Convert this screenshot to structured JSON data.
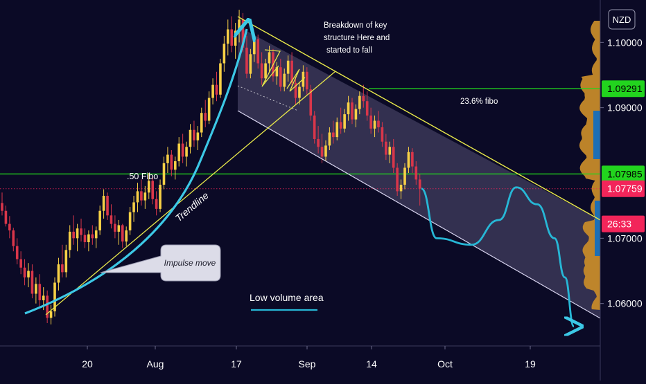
{
  "chart_data": {
    "type": "candlestick",
    "symbol_badge": "NZD",
    "x_ticks": [
      "20",
      "Aug",
      "17",
      "Sep",
      "14",
      "Oct",
      "19"
    ],
    "y_ticks": [
      "1.10000",
      "1.09000",
      "1.07000",
      "1.06000"
    ],
    "y_range": [
      1.0535,
      1.1065
    ],
    "price_tags": [
      {
        "label": "1.09291",
        "value": 1.09291,
        "color": "#22d41e",
        "text_color": "#000000"
      },
      {
        "label": "1.07985",
        "value": 1.07985,
        "color": "#22d41e",
        "text_color": "#000000"
      },
      {
        "label": "1.07759",
        "value": 1.07759,
        "color": "#f2255a",
        "text_color": "#ffffff"
      },
      {
        "label": "26:33",
        "value": 1.0722,
        "color": "#f2255a",
        "text_color": "#ffffff"
      }
    ],
    "annotations": {
      "breakdown": [
        "Breakdown of key",
        "structure Here and",
        "started to fall"
      ],
      "fibo_236": "23.6% fibo",
      "fibo_50": ".50 Fibo",
      "trendline": "Trendline",
      "impulse": "Impulse move",
      "low_volume": "Low volume area"
    },
    "horizontal_levels": [
      1.09291,
      1.07985
    ],
    "last_price": 1.07759,
    "candles": [
      [
        1.0754,
        1.077,
        1.0735,
        1.0742
      ],
      [
        1.0742,
        1.075,
        1.0718,
        1.0722
      ],
      [
        1.0722,
        1.0734,
        1.07,
        1.0712
      ],
      [
        1.0712,
        1.0716,
        1.068,
        1.0688
      ],
      [
        1.0688,
        1.07,
        1.066,
        1.0668
      ],
      [
        1.0668,
        1.068,
        1.0645,
        1.0655
      ],
      [
        1.0655,
        1.0668,
        1.0628,
        1.064
      ],
      [
        1.064,
        1.0662,
        1.0625,
        1.065
      ],
      [
        1.065,
        1.066,
        1.0608,
        1.0615
      ],
      [
        1.0615,
        1.064,
        1.06,
        1.063
      ],
      [
        1.063,
        1.0645,
        1.0595,
        1.0605
      ],
      [
        1.0605,
        1.0625,
        1.059,
        1.0612
      ],
      [
        1.0612,
        1.062,
        1.057,
        1.0578
      ],
      [
        1.0578,
        1.0598,
        1.0568,
        1.0588
      ],
      [
        1.0588,
        1.064,
        1.058,
        1.0632
      ],
      [
        1.0632,
        1.067,
        1.062,
        1.066
      ],
      [
        1.066,
        1.069,
        1.064,
        1.0648
      ],
      [
        1.0648,
        1.069,
        1.064,
        1.0682
      ],
      [
        1.0682,
        1.072,
        1.067,
        1.071
      ],
      [
        1.071,
        1.0735,
        1.069,
        1.07
      ],
      [
        1.07,
        1.0722,
        1.068,
        1.0715
      ],
      [
        1.0715,
        1.073,
        1.0695,
        1.0705
      ],
      [
        1.0705,
        1.0715,
        1.0685,
        1.0694
      ],
      [
        1.0694,
        1.0712,
        1.068,
        1.0706
      ],
      [
        1.0706,
        1.072,
        1.069,
        1.07
      ],
      [
        1.07,
        1.0718,
        1.0685,
        1.0712
      ],
      [
        1.0712,
        1.075,
        1.0705,
        1.0742
      ],
      [
        1.0742,
        1.0775,
        1.073,
        1.0765
      ],
      [
        1.0765,
        1.077,
        1.0728,
        1.0735
      ],
      [
        1.0735,
        1.0752,
        1.0715,
        1.0722
      ],
      [
        1.0722,
        1.0735,
        1.07,
        1.071
      ],
      [
        1.071,
        1.0728,
        1.069,
        1.072
      ],
      [
        1.072,
        1.0722,
        1.0685,
        1.0695
      ],
      [
        1.0695,
        1.0718,
        1.0688,
        1.0712
      ],
      [
        1.0712,
        1.0748,
        1.0705,
        1.074
      ],
      [
        1.074,
        1.0765,
        1.0725,
        1.0755
      ],
      [
        1.0755,
        1.0785,
        1.074,
        1.0772
      ],
      [
        1.0772,
        1.079,
        1.075,
        1.0758
      ],
      [
        1.0758,
        1.078,
        1.0745,
        1.077
      ],
      [
        1.077,
        1.08,
        1.076,
        1.0788
      ],
      [
        1.0788,
        1.0795,
        1.0752,
        1.076
      ],
      [
        1.076,
        1.0772,
        1.0735,
        1.0745
      ],
      [
        1.0745,
        1.079,
        1.074,
        1.0782
      ],
      [
        1.0782,
        1.0825,
        1.0775,
        1.0815
      ],
      [
        1.0815,
        1.084,
        1.08,
        1.0828
      ],
      [
        1.0828,
        1.0835,
        1.0795,
        1.0805
      ],
      [
        1.0805,
        1.0825,
        1.079,
        1.0818
      ],
      [
        1.0818,
        1.0855,
        1.081,
        1.0845
      ],
      [
        1.0845,
        1.086,
        1.0815,
        1.0825
      ],
      [
        1.0825,
        1.0848,
        1.081,
        1.084
      ],
      [
        1.084,
        1.0875,
        1.083,
        1.0866
      ],
      [
        1.0866,
        1.088,
        1.084,
        1.085
      ],
      [
        1.085,
        1.0872,
        1.0835,
        1.0862
      ],
      [
        1.0862,
        1.09,
        1.0855,
        1.0892
      ],
      [
        1.0892,
        1.0912,
        1.087,
        1.088
      ],
      [
        1.088,
        1.0925,
        1.0875,
        1.0915
      ],
      [
        1.0915,
        1.0945,
        1.0905,
        1.0935
      ],
      [
        1.0935,
        1.0955,
        1.091,
        1.092
      ],
      [
        1.092,
        1.0975,
        1.0915,
        1.0968
      ],
      [
        1.0968,
        1.101,
        1.0955,
        1.0998
      ],
      [
        1.0998,
        1.1035,
        1.098,
        1.102
      ],
      [
        1.102,
        1.104,
        1.0985,
        1.0995
      ],
      [
        1.0995,
        1.103,
        1.0975,
        1.1018
      ],
      [
        1.1018,
        1.105,
        1.1,
        1.1035
      ],
      [
        1.1035,
        1.1045,
        1.0985,
        1.0992
      ],
      [
        1.0992,
        1.101,
        1.0945,
        1.0952
      ],
      [
        1.0952,
        1.099,
        1.0945,
        1.0982
      ],
      [
        1.0982,
        1.1015,
        1.097,
        1.1005
      ],
      [
        1.1005,
        1.1012,
        1.096,
        1.0968
      ],
      [
        1.0968,
        1.0985,
        1.0935,
        1.0945
      ],
      [
        1.0945,
        1.0975,
        1.094,
        1.0968
      ],
      [
        1.0968,
        1.0995,
        1.0955,
        1.0985
      ],
      [
        1.0985,
        1.099,
        1.094,
        1.0948
      ],
      [
        1.0948,
        1.097,
        1.0935,
        1.0962
      ],
      [
        1.0962,
        1.0975,
        1.0925,
        1.0932
      ],
      [
        1.0932,
        1.096,
        1.0925,
        1.0952
      ],
      [
        1.0952,
        1.098,
        1.094,
        1.0972
      ],
      [
        1.0972,
        1.0985,
        1.093,
        1.0938
      ],
      [
        1.0938,
        1.0948,
        1.0905,
        1.0915
      ],
      [
        1.0915,
        1.094,
        1.0905,
        1.0932
      ],
      [
        1.0932,
        1.0965,
        1.0925,
        1.0955
      ],
      [
        1.0955,
        1.0962,
        1.092,
        1.0928
      ],
      [
        1.0928,
        1.0935,
        1.088,
        1.0888
      ],
      [
        1.0888,
        1.0895,
        1.0845,
        1.0852
      ],
      [
        1.0852,
        1.0872,
        1.083,
        1.084
      ],
      [
        1.084,
        1.086,
        1.0815,
        1.0825
      ],
      [
        1.0825,
        1.085,
        1.0818,
        1.0842
      ],
      [
        1.0842,
        1.087,
        1.0835,
        1.0862
      ],
      [
        1.0862,
        1.088,
        1.0845,
        1.0855
      ],
      [
        1.0855,
        1.0885,
        1.085,
        1.0878
      ],
      [
        1.0878,
        1.09,
        1.086,
        1.0868
      ],
      [
        1.0868,
        1.0898,
        1.0862,
        1.089
      ],
      [
        1.089,
        1.0918,
        1.088,
        1.0908
      ],
      [
        1.0908,
        1.0915,
        1.0875,
        1.0882
      ],
      [
        1.0882,
        1.0905,
        1.087,
        1.0898
      ],
      [
        1.0898,
        1.0925,
        1.089,
        1.0918
      ],
      [
        1.0918,
        1.0935,
        1.09,
        1.091
      ],
      [
        1.091,
        1.0925,
        1.088,
        1.0888
      ],
      [
        1.0888,
        1.09,
        1.086,
        1.0868
      ],
      [
        1.0868,
        1.0888,
        1.0855,
        1.088
      ],
      [
        1.088,
        1.0895,
        1.0862,
        1.087
      ],
      [
        1.087,
        1.0878,
        1.084,
        1.0848
      ],
      [
        1.0848,
        1.086,
        1.082,
        1.0828
      ],
      [
        1.0828,
        1.0848,
        1.0815,
        1.084
      ],
      [
        1.084,
        1.0852,
        1.08,
        1.0808
      ],
      [
        1.0808,
        1.0815,
        1.0765,
        1.0772
      ],
      [
        1.0772,
        1.079,
        1.076,
        1.0782
      ],
      [
        1.0782,
        1.0815,
        1.0775,
        1.0808
      ],
      [
        1.0808,
        1.084,
        1.08,
        1.0832
      ],
      [
        1.0832,
        1.0838,
        1.08,
        1.081
      ],
      [
        1.081,
        1.0818,
        1.0782,
        1.079
      ],
      [
        1.079,
        1.0798,
        1.075,
        1.0776
      ]
    ],
    "projection": [
      [
        1.0776,
        1.07,
        1.069,
        1.0728,
        1.0778,
        1.0752,
        1.07,
        1.064,
        1.0565
      ]
    ]
  }
}
